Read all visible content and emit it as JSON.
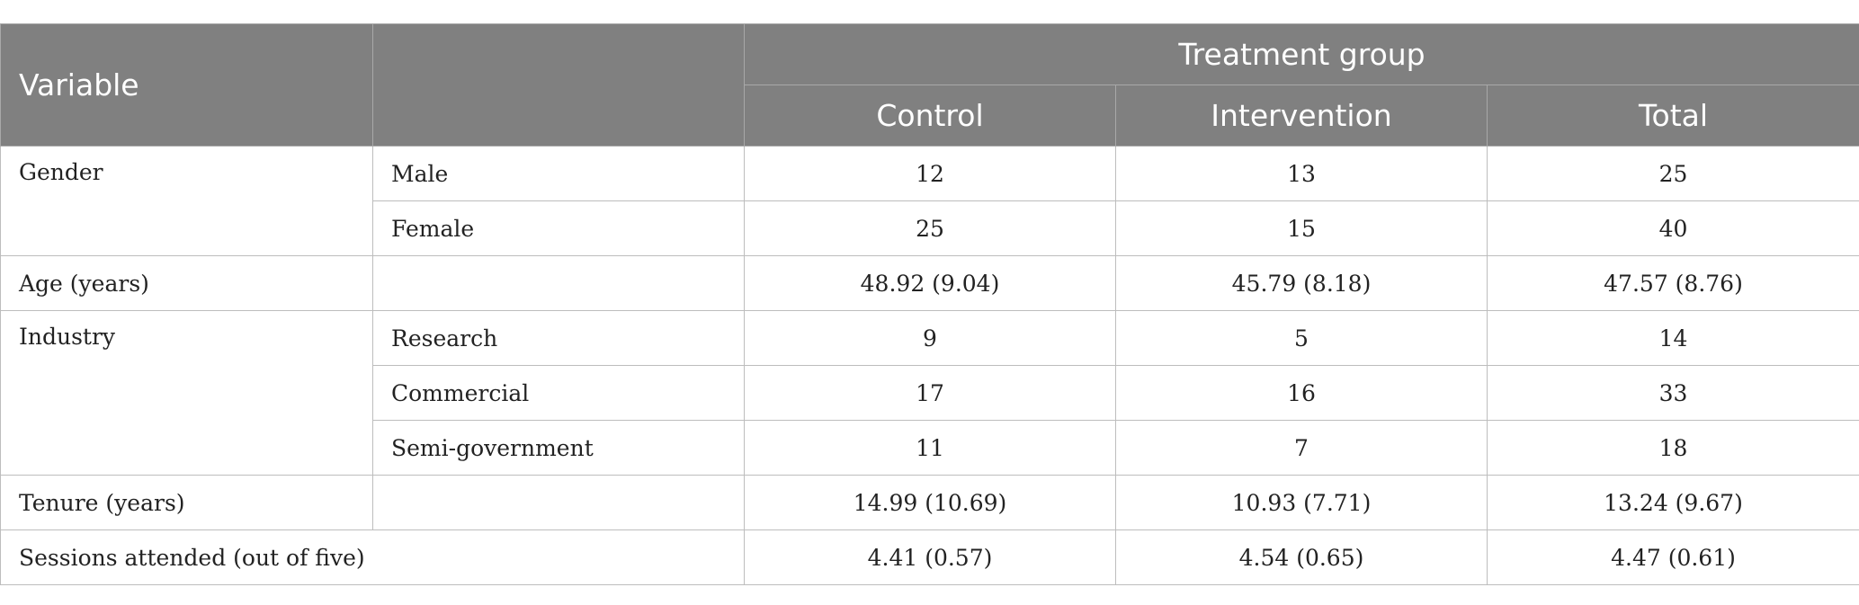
{
  "header": {
    "variable": "Variable",
    "group": "Treatment group",
    "columns": [
      "Control",
      "Intervention",
      "Total"
    ]
  },
  "rows": {
    "gender": {
      "label": "Gender",
      "male": {
        "label": "Male",
        "control": "12",
        "intervention": "13",
        "total": "25"
      },
      "female": {
        "label": "Female",
        "control": "25",
        "intervention": "15",
        "total": "40"
      }
    },
    "age": {
      "label": "Age (years)",
      "control": "48.92 (9.04)",
      "intervention": "45.79 (8.18)",
      "total": "47.57 (8.76)"
    },
    "industry": {
      "label": "Industry",
      "research": {
        "label": "Research",
        "control": "9",
        "intervention": "5",
        "total": "14"
      },
      "commercial": {
        "label": "Commercial",
        "control": "17",
        "intervention": "16",
        "total": "33"
      },
      "semigov": {
        "label": "Semi-government",
        "control": "11",
        "intervention": "7",
        "total": "18"
      }
    },
    "tenure": {
      "label": "Tenure (years)",
      "control": "14.99 (10.69)",
      "intervention": "10.93 (7.71)",
      "total": "13.24 (9.67)"
    },
    "sessions": {
      "label": "Sessions attended (out of five)",
      "control": "4.41 (0.57)",
      "intervention": "4.54 (0.65)",
      "total": "4.47 (0.61)"
    }
  }
}
